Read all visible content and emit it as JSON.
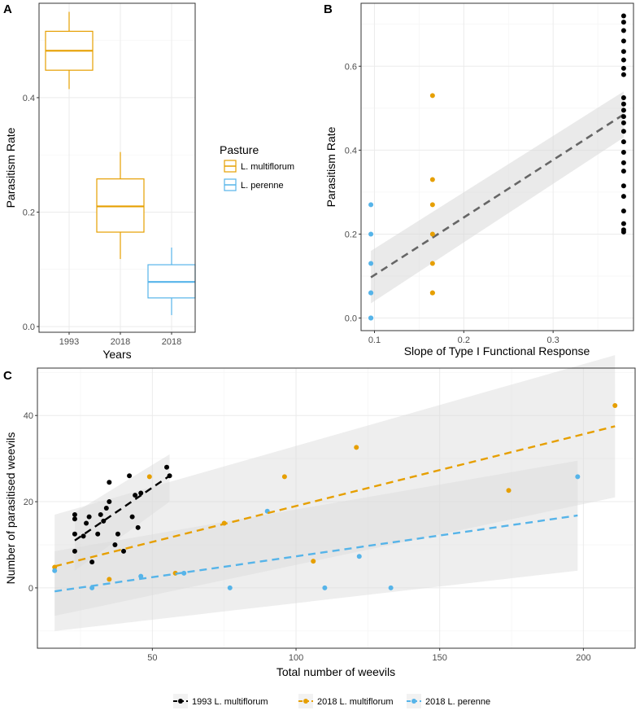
{
  "colors": {
    "y1993": "#000000",
    "lm2018": "#E69F00",
    "lp2018": "#56B4E9",
    "fit_b": "#666666",
    "ribbon": "#d9d9d9"
  },
  "chart_data": [
    {
      "panel": "A",
      "type": "box",
      "xlabel": "Years",
      "ylabel": "Parasitism Rate",
      "ylim": [
        -0.01,
        0.565
      ],
      "yticks": [
        0.0,
        0.2,
        0.4
      ],
      "ytick_labels": [
        "0.0",
        "0.2",
        "0.4"
      ],
      "categories": [
        "1993",
        "2018",
        "2018"
      ],
      "boxes": [
        {
          "category": "1993",
          "pasture": "L. multiflorum",
          "min": 0.415,
          "q1": 0.448,
          "median": 0.482,
          "q3": 0.516,
          "max": 0.55
        },
        {
          "category": "2018",
          "pasture": "L. multiflorum",
          "min": 0.118,
          "q1": 0.165,
          "median": 0.21,
          "q3": 0.258,
          "max": 0.305
        },
        {
          "category": "2018",
          "pasture": "L. perenne",
          "min": 0.02,
          "q1": 0.05,
          "median": 0.078,
          "q3": 0.108,
          "max": 0.138
        }
      ],
      "legend": {
        "title": "Pasture",
        "entries": [
          "L. multiflorum",
          "L. perenne"
        ]
      }
    },
    {
      "panel": "B",
      "type": "scatter",
      "xlabel": "Slope of Type I Functional Response",
      "ylabel": "Parasitism Rate",
      "xlim": [
        0.085,
        0.39
      ],
      "ylim": [
        -0.03,
        0.75
      ],
      "xticks": [
        0.1,
        0.2,
        0.3
      ],
      "xtick_labels": [
        "0.1",
        "0.2",
        "0.3"
      ],
      "yticks": [
        0.0,
        0.2,
        0.4,
        0.6
      ],
      "ytick_labels": [
        "0.0",
        "0.2",
        "0.4",
        "0.6"
      ],
      "series": [
        {
          "name": "2018 L. perenne",
          "x": [
            0.096,
            0.096,
            0.096,
            0.096,
            0.096,
            0.096,
            0.096,
            0.096
          ],
          "y": [
            0.27,
            0.2,
            0.13,
            0.06,
            0.06,
            0.0,
            0.0,
            0.0
          ]
        },
        {
          "name": "2018 L. multiflorum",
          "x": [
            0.165,
            0.165,
            0.165,
            0.165,
            0.165,
            0.165,
            0.165
          ],
          "y": [
            0.53,
            0.33,
            0.27,
            0.2,
            0.13,
            0.06,
            0.06
          ]
        },
        {
          "name": "1993 L. multiflorum",
          "x": [
            0.379,
            0.379,
            0.379,
            0.379,
            0.379,
            0.379,
            0.379,
            0.379,
            0.379,
            0.379,
            0.379,
            0.379,
            0.379,
            0.379,
            0.379,
            0.379,
            0.379,
            0.379,
            0.379,
            0.379,
            0.379,
            0.379,
            0.379,
            0.379
          ],
          "y": [
            0.72,
            0.705,
            0.685,
            0.66,
            0.635,
            0.615,
            0.595,
            0.58,
            0.525,
            0.51,
            0.495,
            0.48,
            0.465,
            0.445,
            0.42,
            0.395,
            0.37,
            0.35,
            0.315,
            0.29,
            0.255,
            0.225,
            0.21,
            0.205
          ]
        }
      ],
      "fit": {
        "x": [
          0.096,
          0.379
        ],
        "y": [
          0.097,
          0.485
        ],
        "ci_low": [
          0.035,
          0.43
        ],
        "ci_high": [
          0.16,
          0.54
        ]
      }
    },
    {
      "panel": "C",
      "type": "scatter",
      "xlabel": "Total number of weevils",
      "ylabel": "Number of parasitised weevils",
      "xlim": [
        10,
        218
      ],
      "ylim": [
        -14,
        51
      ],
      "xticks": [
        50,
        100,
        150,
        200
      ],
      "xtick_labels": [
        "50",
        "100",
        "150",
        "200"
      ],
      "yticks": [
        0,
        20,
        40
      ],
      "ytick_labels": [
        "0",
        "20",
        "40"
      ],
      "series": [
        {
          "name": "1993 L. multiflorum",
          "x": [
            23,
            23,
            23,
            23,
            26,
            27,
            28,
            29,
            31,
            32,
            33,
            34,
            35,
            35,
            37,
            38,
            40,
            42,
            43,
            44,
            45,
            46,
            55,
            56
          ],
          "y": [
            17,
            16,
            12.5,
            8.5,
            12,
            15,
            16.5,
            6,
            12.5,
            17,
            15.5,
            18.5,
            20,
            24.5,
            10,
            12.5,
            8.5,
            26,
            16.5,
            21.5,
            14,
            22,
            28,
            26
          ]
        },
        {
          "name": "2018 L. multiflorum",
          "x": [
            16,
            35,
            49,
            58,
            75,
            96,
            106,
            121,
            174,
            211
          ],
          "y": [
            4.8,
            2,
            25.8,
            3.4,
            15,
            25.8,
            6.2,
            32.6,
            22.6,
            42.3
          ]
        },
        {
          "name": "2018 L. perenne",
          "x": [
            16,
            29,
            46,
            61,
            77,
            90,
            110,
            122,
            133,
            198
          ],
          "y": [
            4,
            0,
            2.7,
            3.4,
            0,
            17.8,
            0,
            7.3,
            0,
            25.8
          ]
        }
      ],
      "fits": [
        {
          "name": "1993 L. multiflorum",
          "x": [
            23,
            56
          ],
          "y": [
            11,
            26
          ],
          "ci_low": [
            4,
            20
          ],
          "ci_high": [
            17.5,
            31
          ]
        },
        {
          "name": "2018 L. multiflorum",
          "x": [
            16,
            211
          ],
          "y": [
            5,
            37.5
          ],
          "ci_low": [
            -6.5,
            21
          ],
          "ci_high": [
            17,
            54
          ]
        },
        {
          "name": "2018 L. perenne",
          "x": [
            16,
            198
          ],
          "y": [
            -0.8,
            16.8
          ],
          "ci_low": [
            -10,
            4
          ],
          "ci_high": [
            8.5,
            29.5
          ]
        }
      ],
      "legend": {
        "placement": "bottom",
        "entries": [
          "1993 L. multiflorum",
          "2018 L. multiflorum",
          "2018 L. perenne"
        ]
      }
    }
  ]
}
